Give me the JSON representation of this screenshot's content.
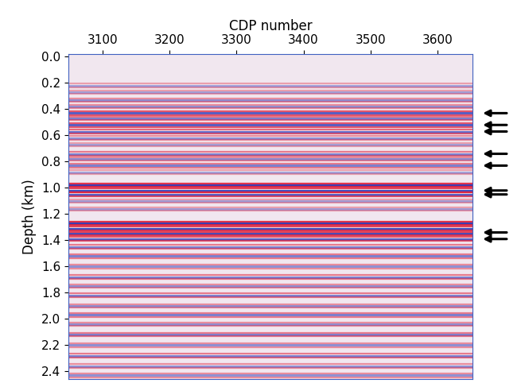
{
  "chart_data": {
    "type": "seismic_section",
    "x_label": "CDP number",
    "y_label": "Depth (km)",
    "xlim": [
      3049,
      3652
    ],
    "ylim": [
      2.46,
      -0.02
    ],
    "xticks": [
      3100,
      3200,
      3300,
      3400,
      3500,
      3600
    ],
    "yticks": [
      0.0,
      0.2,
      0.4,
      0.6,
      0.8,
      1.0,
      1.2,
      1.4,
      1.6,
      1.8,
      2.0,
      2.2,
      2.4
    ],
    "reflectors": {
      "depths": [
        0.22,
        0.27,
        0.33,
        0.38,
        0.43,
        0.47,
        0.52,
        0.57,
        0.62,
        0.67,
        0.74,
        0.78,
        0.83,
        0.88,
        0.98,
        1.02,
        1.05,
        1.1,
        1.16,
        1.27,
        1.31,
        1.35,
        1.39,
        1.45,
        1.52,
        1.6,
        1.68,
        1.75,
        1.82,
        1.9,
        1.97,
        2.04,
        2.12,
        2.2,
        2.28,
        2.36,
        2.43
      ],
      "amplitudes": [
        0.4,
        0.4,
        0.5,
        0.5,
        0.8,
        0.6,
        0.8,
        0.7,
        0.5,
        0.4,
        0.6,
        0.5,
        0.6,
        0.4,
        1.0,
        0.9,
        0.8,
        0.4,
        0.4,
        1.0,
        0.9,
        0.9,
        0.8,
        0.6,
        0.6,
        0.5,
        0.6,
        0.5,
        0.6,
        0.5,
        0.6,
        0.5,
        0.6,
        0.5,
        0.6,
        0.5,
        0.5
      ]
    },
    "arrows": [
      0.43,
      0.52,
      0.57,
      0.74,
      0.83,
      1.02,
      1.05,
      1.34,
      1.39
    ]
  }
}
